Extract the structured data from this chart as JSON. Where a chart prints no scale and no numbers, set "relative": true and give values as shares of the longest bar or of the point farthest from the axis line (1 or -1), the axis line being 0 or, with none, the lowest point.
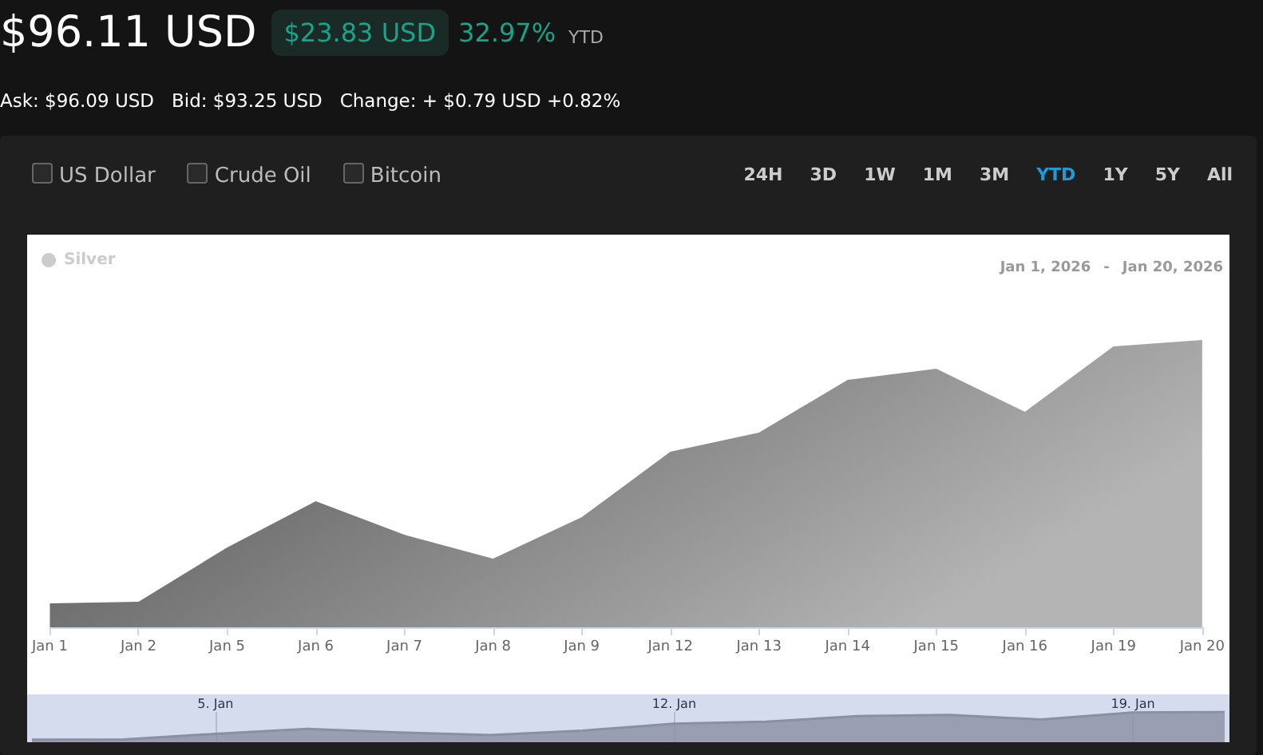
{
  "chart_data": [
    {
      "type": "area",
      "title": "$96.11 USD",
      "subtitle": "Ask: $96.09 USD   Bid: $93.25 USD   Change: + $0.79 USD +0.82%",
      "annotations": [
        "$23.83 USD",
        "32.97%",
        "YTD",
        "US Dollar",
        "Crude Oil",
        "Bitcoin",
        "24H",
        "3D",
        "1W",
        "1M",
        "3M",
        "YTD",
        "1Y",
        "5Y",
        "All",
        "Jan 1, 2026",
        "-",
        "Jan 20, 2026"
      ],
      "categories": [
        "Jan 1",
        "Jan 2",
        "Jan 5",
        "Jan 6",
        "Jan 7",
        "Jan 8",
        "Jan 9",
        "Jan 12",
        "Jan 13",
        "Jan 14",
        "Jan 15",
        "Jan 16",
        "Jan 19",
        "Jan 20"
      ],
      "relative": true,
      "legend": "top left",
      "grid": false,
      "marker": "none",
      "series": [
        {
          "name": "Silver",
          "color": "#4f4f4f",
          "values": [
            0.083,
            0.089,
            0.278,
            0.439,
            0.322,
            0.239,
            0.383,
            0.611,
            0.678,
            0.861,
            0.9,
            0.75,
            0.978,
            1
          ]
        }
      ]
    },
    {
      "type": "area",
      "categories": [
        null,
        null,
        "5. Jan",
        null,
        null,
        null,
        null,
        "12. Jan",
        null,
        null,
        null,
        null,
        "19. Jan",
        null
      ],
      "relative": true,
      "grid": "x",
      "marker": "none",
      "series": [
        {
          "color": "#8a8fa3",
          "values": [
            0.083,
            0.089,
            0.278,
            0.439,
            0.322,
            0.239,
            0.383,
            0.611,
            0.678,
            0.861,
            0.9,
            0.75,
            0.978,
            1
          ]
        }
      ]
    }
  ]
}
